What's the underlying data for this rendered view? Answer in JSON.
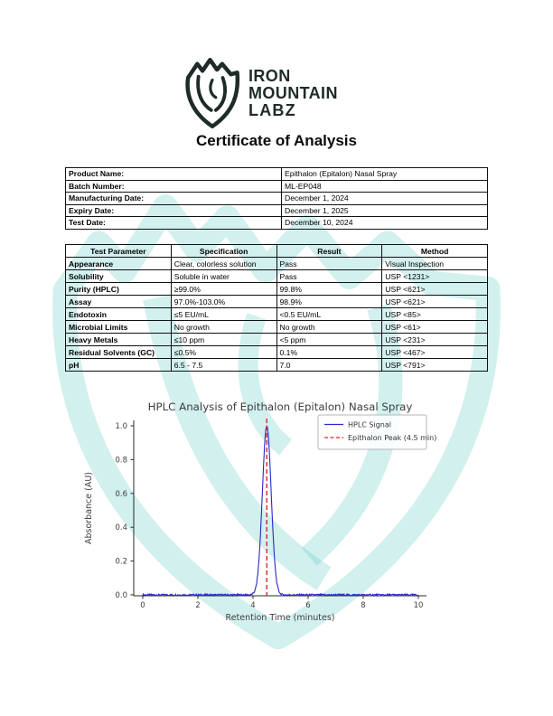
{
  "logo": {
    "icon": "mountain-shield-fist",
    "line1": "IRON",
    "line2": "MOUNTAIN",
    "line3": "LABZ",
    "color": "#1e2b29",
    "watermark_color": "#3ec2b6"
  },
  "heading": "Certificate of Analysis",
  "product_info": {
    "rows": [
      {
        "label": "Product Name:",
        "value": "Epithalon (Epitalon) Nasal Spray"
      },
      {
        "label": "Batch Number:",
        "value": "ML-EP048"
      },
      {
        "label": "Manufacturing Date:",
        "value": "December 1, 2024"
      },
      {
        "label": "Expiry Date:",
        "value": "December 1, 2025"
      },
      {
        "label": "Test Date:",
        "value": "December 10, 2024"
      }
    ]
  },
  "test_results": {
    "headers": [
      "Test Parameter",
      "Specification",
      "Result",
      "Method"
    ],
    "rows": [
      [
        "Appearance",
        "Clear, colorless solution",
        "Pass",
        "Visual Inspection"
      ],
      [
        "Solubility",
        "Soluble in water",
        "Pass",
        "USP <1231>"
      ],
      [
        "Purity (HPLC)",
        "≥99.0%",
        "99.8%",
        "USP <621>"
      ],
      [
        "Assay",
        "97.0%-103.0%",
        "98.9%",
        "USP <621>"
      ],
      [
        "Endotoxin",
        "≤5 EU/mL",
        "<0.5 EU/mL",
        "USP <85>"
      ],
      [
        "Microbial Limits",
        "No growth",
        "No growth",
        "USP <61>"
      ],
      [
        "Heavy Metals",
        "≤10 ppm",
        "<5 ppm",
        "USP <231>"
      ],
      [
        "Residual Solvents (GC)",
        "≤0.5%",
        "0.1%",
        "USP <467>"
      ],
      [
        "pH",
        "6.5 - 7.5",
        "7.0",
        "USP <791>"
      ]
    ]
  },
  "chart_data": {
    "type": "line",
    "title": "HPLC Analysis of Epithalon (Epitalon) Nasal Spray",
    "xlabel": "Retention Time (minutes)",
    "ylabel": "Absorbance (AU)",
    "xlim": [
      0,
      10
    ],
    "ylim": [
      0,
      1.0
    ],
    "xticks": [
      0,
      2,
      4,
      6,
      8,
      10
    ],
    "yticks": [
      0.0,
      0.2,
      0.4,
      0.6,
      0.8,
      1.0
    ],
    "grid": false,
    "legend_position": "upper right",
    "series": [
      {
        "name": "HPLC Signal",
        "color": "#2828cc",
        "shape": "gaussian",
        "x_range": [
          0,
          10
        ],
        "baseline_au": 0.0,
        "noise_au": 0.005,
        "peak_center_min": 4.5,
        "peak_height_au": 1.0,
        "peak_sigma_min": 0.16
      }
    ],
    "annotations": [
      {
        "name": "Epithalon Peak (4.5 min)",
        "type": "vline",
        "x": 4.5,
        "color": "#d62728",
        "style": "dashed"
      }
    ],
    "text_color": "#3d3d3d",
    "spine_color": "#2b2b2b"
  }
}
